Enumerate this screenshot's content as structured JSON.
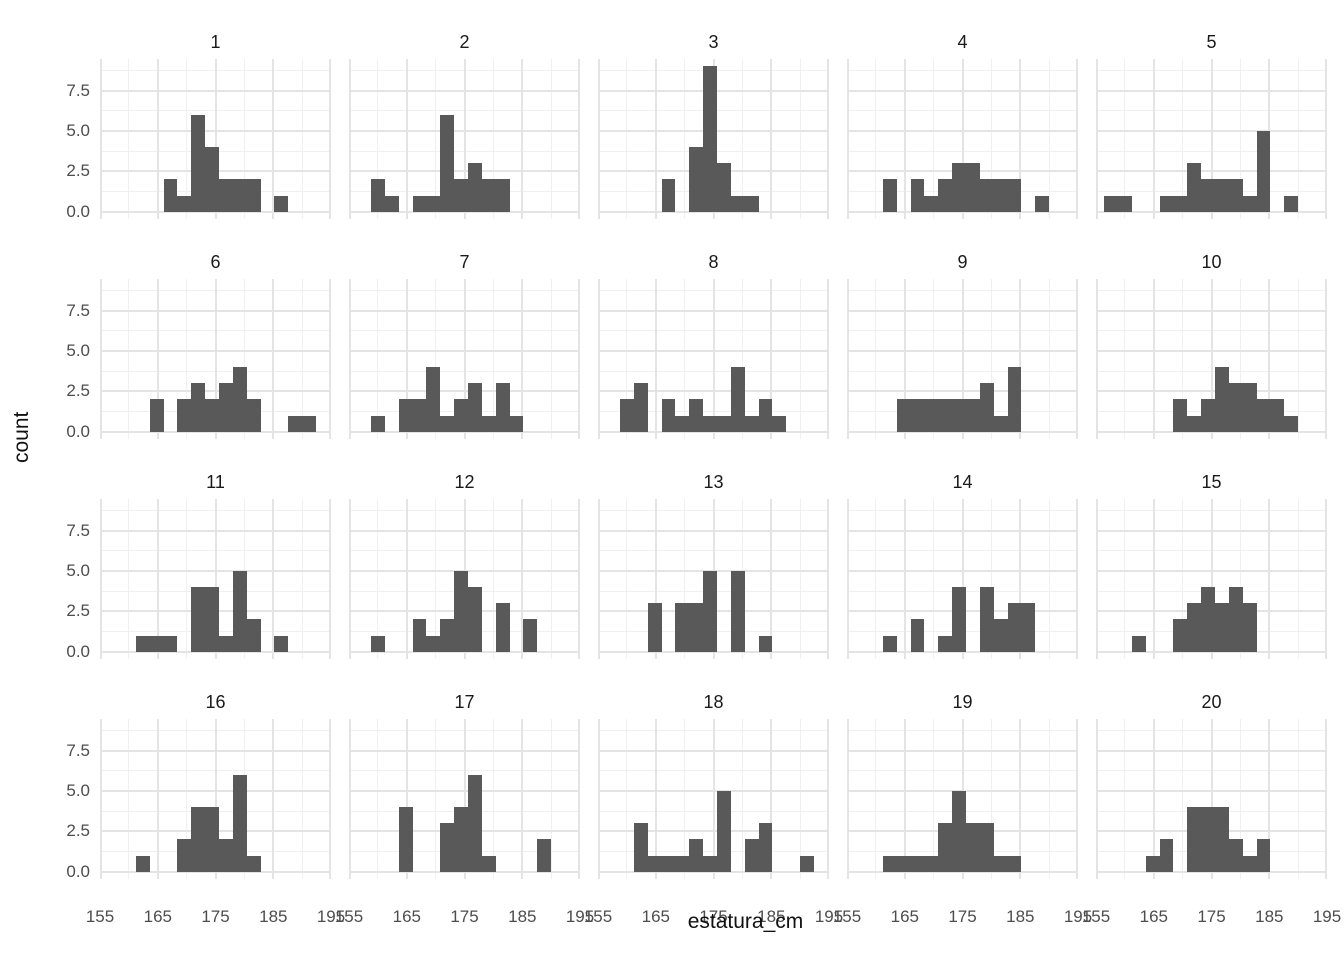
{
  "figure": {
    "x_axis_title": "estatura_cm",
    "y_axis_title": "count"
  },
  "colors": {
    "bar_fill": "#595959",
    "grid_major": "#e4e4e4",
    "grid_minor": "#f0f0f0",
    "tick_text": "#4d4d4d",
    "facet_label_text": "#1a1a1a",
    "background": "#ffffff"
  },
  "chart_data": {
    "type": "bar",
    "subtype": "faceted-histogram",
    "title": "",
    "xlabel": "estatura_cm",
    "ylabel": "count",
    "xlim": [
      155,
      195
    ],
    "ylim": [
      0,
      9.45
    ],
    "grid": true,
    "x_ticks": [
      155,
      165,
      175,
      185,
      195
    ],
    "x_tick_labels": [
      "155",
      "165",
      "175",
      "185",
      "195"
    ],
    "x_minor_ticks": [
      160,
      170,
      180,
      190
    ],
    "y_ticks": [
      0,
      2.5,
      5,
      7.5
    ],
    "y_tick_labels": [
      "0.0",
      "2.5",
      "5.0",
      "7.5"
    ],
    "y_minor_ticks": [
      1.25,
      3.75,
      6.25,
      8.75
    ],
    "bin_start": 156.4,
    "bin_width": 2.4,
    "bin_lefts": [
      156.4,
      158.8,
      161.2,
      163.6,
      166.0,
      168.4,
      170.8,
      173.2,
      175.6,
      178.0,
      180.4,
      182.8,
      185.2,
      187.6,
      190.0,
      192.4
    ],
    "facets": [
      {
        "label": "1",
        "counts": [
          0,
          0,
          0,
          0,
          2,
          1,
          6,
          4,
          2,
          2,
          2,
          0,
          1,
          0,
          0,
          0
        ]
      },
      {
        "label": "2",
        "counts": [
          0,
          2,
          1,
          0,
          1,
          1,
          6,
          2,
          3,
          2,
          2,
          0,
          0,
          0,
          0,
          0
        ]
      },
      {
        "label": "3",
        "counts": [
          0,
          0,
          0,
          0,
          2,
          0,
          4,
          9,
          3,
          1,
          1,
          0,
          0,
          0,
          0,
          0
        ]
      },
      {
        "label": "4",
        "counts": [
          0,
          0,
          2,
          0,
          2,
          1,
          2,
          3,
          3,
          2,
          2,
          2,
          0,
          1,
          0,
          0
        ]
      },
      {
        "label": "5",
        "counts": [
          1,
          1,
          0,
          0,
          1,
          1,
          3,
          2,
          2,
          2,
          1,
          5,
          0,
          1,
          0,
          0
        ]
      },
      {
        "label": "6",
        "counts": [
          0,
          0,
          0,
          2,
          0,
          2,
          3,
          2,
          3,
          4,
          2,
          0,
          0,
          1,
          1,
          0
        ]
      },
      {
        "label": "7",
        "counts": [
          0,
          1,
          0,
          2,
          2,
          4,
          1,
          2,
          3,
          1,
          3,
          1,
          0,
          0,
          0,
          0
        ]
      },
      {
        "label": "8",
        "counts": [
          0,
          2,
          3,
          0,
          2,
          1,
          2,
          1,
          1,
          4,
          1,
          2,
          1,
          0,
          0,
          0
        ]
      },
      {
        "label": "9",
        "counts": [
          0,
          0,
          0,
          2,
          2,
          2,
          2,
          2,
          2,
          3,
          1,
          4,
          0,
          0,
          0,
          0
        ]
      },
      {
        "label": "10",
        "counts": [
          0,
          0,
          0,
          0,
          0,
          2,
          1,
          2,
          4,
          3,
          3,
          2,
          2,
          1,
          0,
          0
        ]
      },
      {
        "label": "11",
        "counts": [
          0,
          0,
          1,
          1,
          1,
          0,
          4,
          4,
          1,
          5,
          2,
          0,
          1,
          0,
          0,
          0
        ]
      },
      {
        "label": "12",
        "counts": [
          0,
          1,
          0,
          0,
          2,
          1,
          2,
          5,
          4,
          0,
          3,
          0,
          2,
          0,
          0,
          0
        ]
      },
      {
        "label": "13",
        "counts": [
          0,
          0,
          0,
          3,
          0,
          3,
          3,
          5,
          0,
          5,
          0,
          1,
          0,
          0,
          0,
          0
        ]
      },
      {
        "label": "14",
        "counts": [
          0,
          0,
          1,
          0,
          2,
          0,
          1,
          4,
          0,
          4,
          2,
          3,
          3,
          0,
          0,
          0
        ]
      },
      {
        "label": "15",
        "counts": [
          0,
          0,
          1,
          0,
          0,
          2,
          3,
          4,
          3,
          4,
          3,
          0,
          0,
          0,
          0,
          0
        ]
      },
      {
        "label": "16",
        "counts": [
          0,
          0,
          1,
          0,
          0,
          2,
          4,
          4,
          2,
          6,
          1,
          0,
          0,
          0,
          0,
          0
        ]
      },
      {
        "label": "17",
        "counts": [
          0,
          0,
          0,
          4,
          0,
          0,
          3,
          4,
          6,
          1,
          0,
          0,
          0,
          2,
          0,
          0
        ]
      },
      {
        "label": "18",
        "counts": [
          0,
          0,
          3,
          1,
          1,
          1,
          2,
          1,
          5,
          0,
          2,
          3,
          0,
          0,
          1,
          0
        ]
      },
      {
        "label": "19",
        "counts": [
          0,
          0,
          1,
          1,
          1,
          1,
          3,
          5,
          3,
          3,
          1,
          1,
          0,
          0,
          0,
          0
        ]
      },
      {
        "label": "20",
        "counts": [
          0,
          0,
          0,
          1,
          2,
          0,
          4,
          4,
          4,
          2,
          1,
          2,
          0,
          0,
          0,
          0
        ]
      }
    ],
    "legend": null,
    "notes": "20 facets (groups 1-20), n=20 per facet; histogram of estatura_cm"
  }
}
